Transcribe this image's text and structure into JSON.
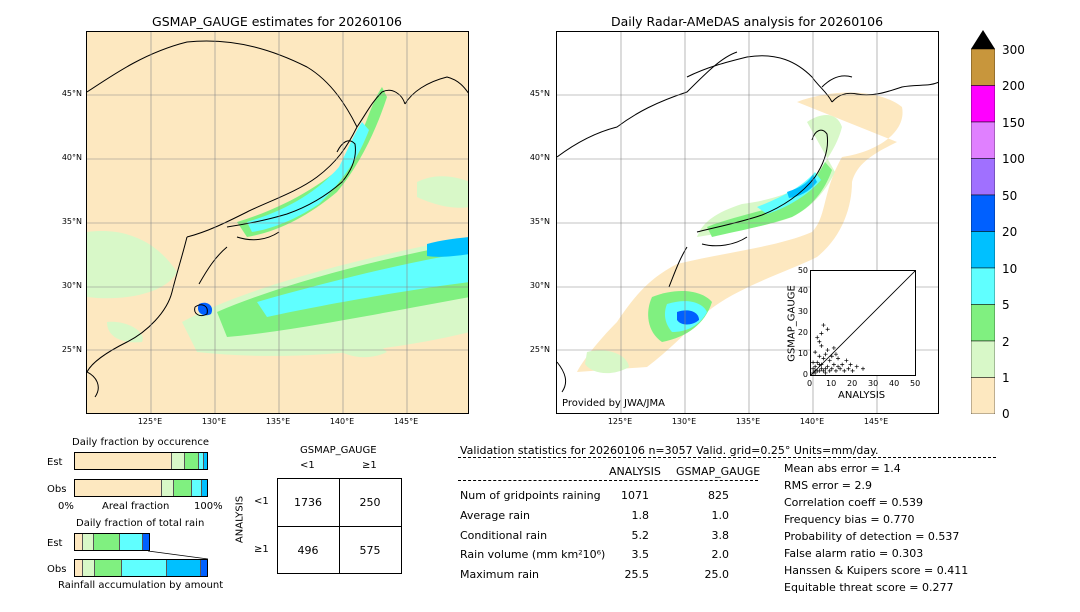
{
  "left_map": {
    "title": "GSMAP_GAUGE estimates for 20260106",
    "lat_labels": [
      "45°N",
      "40°N",
      "35°N",
      "30°N",
      "25°N"
    ],
    "lon_labels": [
      "125°E",
      "130°E",
      "135°E",
      "140°E",
      "145°E"
    ]
  },
  "right_map": {
    "title": "Daily Radar-AMeDAS analysis for 20260106",
    "lat_labels": [
      "45°N",
      "40°N",
      "35°N",
      "30°N",
      "25°N"
    ],
    "lon_labels": [
      "125°E",
      "130°E",
      "135°E",
      "140°E",
      "145°E"
    ],
    "credit": "Provided by JWA/JMA"
  },
  "colorbar": {
    "labels": [
      "300",
      "200",
      "150",
      "100",
      "50",
      "20",
      "10",
      "5",
      "2",
      "1",
      "0"
    ],
    "colors": [
      "#c8963c",
      "#ff00ff",
      "#e080ff",
      "#a070ff",
      "#0060ff",
      "#00c0ff",
      "#60ffff",
      "#80f080",
      "#d8f8c8",
      "#fde8c0"
    ]
  },
  "scatter": {
    "xlabel": "ANALYSIS",
    "ylabel": "GSMAP_GAUGE",
    "ticks": [
      "0",
      "10",
      "20",
      "30",
      "40",
      "50"
    ]
  },
  "fraction_occurrence": {
    "title": "Daily fraction by occurence",
    "rows": [
      "Est",
      "Obs"
    ],
    "axis_left": "0%",
    "axis_mid": "Areal fraction",
    "axis_right": "100%"
  },
  "fraction_total": {
    "title": "Daily fraction of total rain",
    "rows": [
      "Est",
      "Obs"
    ],
    "footer": "Rainfall accumulation by amount"
  },
  "contingency": {
    "col_header": "GSMAP_GAUGE",
    "col_labels": [
      "<1",
      "≥1"
    ],
    "row_header": "ANALYSIS",
    "row_labels": [
      "<1",
      "≥1"
    ],
    "cells": [
      [
        "1736",
        "250"
      ],
      [
        "496",
        "575"
      ]
    ]
  },
  "validation": {
    "header": "Validation statistics for 20260106  n=3057 Valid. grid=0.25° Units=mm/day.",
    "col_analysis": "ANALYSIS",
    "col_gsmap": "GSMAP_GAUGE",
    "rows": [
      {
        "label": "Num of gridpoints raining",
        "analysis": "1071",
        "gsmap": "825"
      },
      {
        "label": "Average rain",
        "analysis": "1.8",
        "gsmap": "1.0"
      },
      {
        "label": "Conditional rain",
        "analysis": "5.2",
        "gsmap": "3.8"
      },
      {
        "label": "Rain volume (mm km²10⁶)",
        "analysis": "3.5",
        "gsmap": "2.0"
      },
      {
        "label": "Maximum rain",
        "analysis": "25.5",
        "gsmap": "25.0"
      }
    ],
    "scores": [
      "Mean abs error =    1.4",
      "RMS error =    2.9",
      "Correlation coeff =  0.539",
      "Frequency bias =  0.770",
      "Probability of detection =  0.537",
      "False alarm ratio =  0.303",
      "Hanssen & Kuipers score =  0.411",
      "Equitable threat score =  0.277"
    ]
  },
  "chart_data": {
    "type": "scatter",
    "xlabel": "ANALYSIS",
    "ylabel": "GSMAP_GAUGE",
    "xlim": [
      0,
      50
    ],
    "ylim": [
      0,
      50
    ],
    "points": [
      [
        1,
        1
      ],
      [
        2,
        1
      ],
      [
        3,
        2
      ],
      [
        4,
        2
      ],
      [
        5,
        3
      ],
      [
        2,
        4
      ],
      [
        6,
        2
      ],
      [
        7,
        3
      ],
      [
        8,
        4
      ],
      [
        3,
        6
      ],
      [
        5,
        5
      ],
      [
        9,
        2
      ],
      [
        10,
        3
      ],
      [
        11,
        5
      ],
      [
        12,
        2
      ],
      [
        13,
        4
      ],
      [
        6,
        8
      ],
      [
        7,
        10
      ],
      [
        8,
        12
      ],
      [
        5,
        14
      ],
      [
        4,
        9
      ],
      [
        9,
        7
      ],
      [
        10,
        9
      ],
      [
        14,
        3
      ],
      [
        15,
        5
      ],
      [
        16,
        2
      ],
      [
        18,
        3
      ],
      [
        20,
        2
      ],
      [
        22,
        4
      ],
      [
        25,
        3
      ],
      [
        3,
        18
      ],
      [
        5,
        20
      ],
      [
        6,
        24
      ],
      [
        8,
        22
      ],
      [
        4,
        16
      ],
      [
        2,
        11
      ],
      [
        1,
        6
      ],
      [
        12,
        10
      ],
      [
        11,
        13
      ],
      [
        13,
        8
      ],
      [
        17,
        7
      ],
      [
        19,
        5
      ],
      [
        1,
        3
      ],
      [
        2,
        2
      ],
      [
        4,
        5
      ],
      [
        7,
        1
      ]
    ]
  }
}
